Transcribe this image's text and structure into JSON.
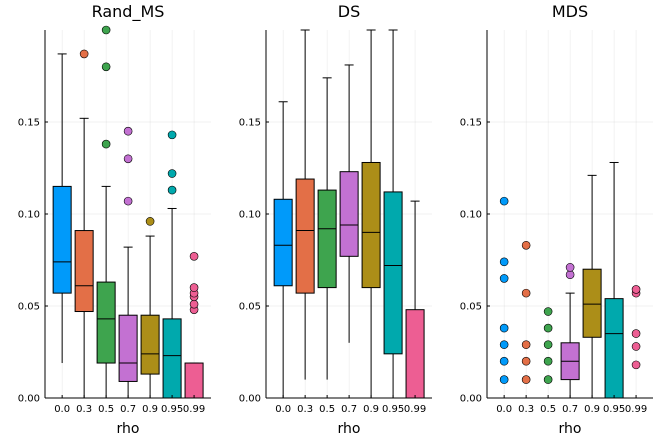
{
  "chart_data": [
    {
      "type": "boxplot",
      "title": "Rand_MS",
      "xlabel": "rho",
      "ylabel": "",
      "categories": [
        "0.0",
        "0.3",
        "0.5",
        "0.7",
        "0.9",
        "0.95",
        "0.99"
      ],
      "ylim": [
        0,
        0.2
      ],
      "yticks": [
        0.0,
        0.05,
        0.1,
        0.15
      ],
      "ytick_labels": [
        "0.00",
        "0.05",
        "0.10",
        "0.15"
      ],
      "grid": true,
      "series": [
        {
          "name": "0.0",
          "color": "#009AFA",
          "whisker_low": 0.019,
          "q1": 0.057,
          "median": 0.074,
          "q3": 0.115,
          "whisker_high": 0.187,
          "outliers": []
        },
        {
          "name": "0.3",
          "color": "#E36F47",
          "whisker_low": 0.0,
          "q1": 0.047,
          "median": 0.061,
          "q3": 0.091,
          "whisker_high": 0.152,
          "outliers": [
            0.187
          ]
        },
        {
          "name": "0.5",
          "color": "#3EA44E",
          "whisker_low": 0.0,
          "q1": 0.019,
          "median": 0.043,
          "q3": 0.063,
          "whisker_high": 0.115,
          "outliers": [
            0.138,
            0.18,
            0.2
          ]
        },
        {
          "name": "0.7",
          "color": "#C371D2",
          "whisker_low": 0.0,
          "q1": 0.009,
          "median": 0.019,
          "q3": 0.045,
          "whisker_high": 0.082,
          "outliers": [
            0.107,
            0.13,
            0.145
          ]
        },
        {
          "name": "0.9",
          "color": "#AC8E18",
          "whisker_low": 0.0,
          "q1": 0.013,
          "median": 0.024,
          "q3": 0.045,
          "whisker_high": 0.088,
          "outliers": [
            0.096
          ]
        },
        {
          "name": "0.95",
          "color": "#00A9AD",
          "whisker_low": 0.0,
          "q1": 0.0,
          "median": 0.023,
          "q3": 0.043,
          "whisker_high": 0.103,
          "outliers": [
            0.113,
            0.122,
            0.143
          ]
        },
        {
          "name": "0.99",
          "color": "#ED5E93",
          "whisker_low": 0.0,
          "q1": 0.0,
          "median": 0.0,
          "q3": 0.019,
          "whisker_high": 0.019,
          "outliers": [
            0.048,
            0.051,
            0.055,
            0.057,
            0.06,
            0.077
          ]
        }
      ]
    },
    {
      "type": "boxplot",
      "title": "DS",
      "xlabel": "rho",
      "ylabel": "",
      "categories": [
        "0.0",
        "0.3",
        "0.5",
        "0.7",
        "0.9",
        "0.95",
        "0.99"
      ],
      "ylim": [
        0,
        0.2
      ],
      "yticks": [
        0.0,
        0.05,
        0.1,
        0.15
      ],
      "ytick_labels": [
        "0.00",
        "0.05",
        "0.10",
        "0.15"
      ],
      "grid": true,
      "series": [
        {
          "name": "0.0",
          "color": "#009AFA",
          "whisker_low": 0.0,
          "q1": 0.061,
          "median": 0.083,
          "q3": 0.108,
          "whisker_high": 0.161,
          "outliers": []
        },
        {
          "name": "0.3",
          "color": "#E36F47",
          "whisker_low": 0.01,
          "q1": 0.057,
          "median": 0.091,
          "q3": 0.119,
          "whisker_high": 0.2,
          "outliers": []
        },
        {
          "name": "0.5",
          "color": "#3EA44E",
          "whisker_low": 0.01,
          "q1": 0.06,
          "median": 0.092,
          "q3": 0.113,
          "whisker_high": 0.174,
          "outliers": []
        },
        {
          "name": "0.7",
          "color": "#C371D2",
          "whisker_low": 0.03,
          "q1": 0.077,
          "median": 0.094,
          "q3": 0.123,
          "whisker_high": 0.181,
          "outliers": []
        },
        {
          "name": "0.9",
          "color": "#AC8E18",
          "whisker_low": 0.0,
          "q1": 0.06,
          "median": 0.09,
          "q3": 0.128,
          "whisker_high": 0.2,
          "outliers": []
        },
        {
          "name": "0.95",
          "color": "#00A9AD",
          "whisker_low": 0.0,
          "q1": 0.024,
          "median": 0.072,
          "q3": 0.112,
          "whisker_high": 0.2,
          "outliers": []
        },
        {
          "name": "0.99",
          "color": "#ED5E93",
          "whisker_low": 0.0,
          "q1": 0.0,
          "median": 0.0,
          "q3": 0.048,
          "whisker_high": 0.107,
          "outliers": []
        }
      ]
    },
    {
      "type": "boxplot",
      "title": "MDS",
      "xlabel": "rho",
      "ylabel": "",
      "categories": [
        "0.0",
        "0.3",
        "0.5",
        "0.7",
        "0.9",
        "0.95",
        "0.99"
      ],
      "ylim": [
        0,
        0.2
      ],
      "yticks": [
        0.0,
        0.05,
        0.1,
        0.15
      ],
      "ytick_labels": [
        "0.00",
        "0.05",
        "0.10",
        "0.15"
      ],
      "grid": true,
      "series": [
        {
          "name": "0.0",
          "color": "#009AFA",
          "whisker_low": 0.0,
          "q1": 0.0,
          "median": 0.0,
          "q3": 0.0,
          "whisker_high": 0.0,
          "outliers": [
            0.01,
            0.02,
            0.029,
            0.038,
            0.065,
            0.074,
            0.107
          ]
        },
        {
          "name": "0.3",
          "color": "#E36F47",
          "whisker_low": 0.0,
          "q1": 0.0,
          "median": 0.0,
          "q3": 0.0,
          "whisker_high": 0.0,
          "outliers": [
            0.01,
            0.02,
            0.029,
            0.057,
            0.083
          ]
        },
        {
          "name": "0.5",
          "color": "#3EA44E",
          "whisker_low": 0.0,
          "q1": 0.0,
          "median": 0.0,
          "q3": 0.0,
          "whisker_high": 0.0,
          "outliers": [
            0.01,
            0.02,
            0.029,
            0.038,
            0.047
          ]
        },
        {
          "name": "0.7",
          "color": "#C371D2",
          "whisker_low": 0.0,
          "q1": 0.01,
          "median": 0.02,
          "q3": 0.03,
          "whisker_high": 0.057,
          "outliers": [
            0.067,
            0.071
          ]
        },
        {
          "name": "0.9",
          "color": "#AC8E18",
          "whisker_low": 0.0,
          "q1": 0.033,
          "median": 0.051,
          "q3": 0.07,
          "whisker_high": 0.121,
          "outliers": []
        },
        {
          "name": "0.95",
          "color": "#00A9AD",
          "whisker_low": 0.0,
          "q1": 0.0,
          "median": 0.035,
          "q3": 0.054,
          "whisker_high": 0.128,
          "outliers": []
        },
        {
          "name": "0.99",
          "color": "#ED5E93",
          "whisker_low": 0.0,
          "q1": 0.0,
          "median": 0.0,
          "q3": 0.0,
          "whisker_high": 0.0,
          "outliers": [
            0.018,
            0.028,
            0.035,
            0.057,
            0.059
          ]
        }
      ]
    }
  ]
}
